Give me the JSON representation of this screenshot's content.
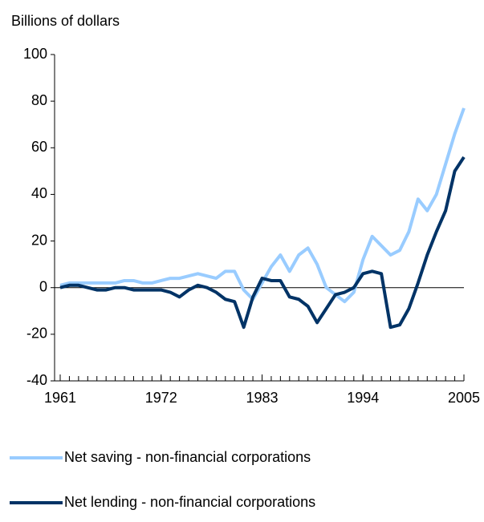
{
  "chart_data": {
    "type": "line",
    "y_axis_label": "Billions of dollars",
    "x": [
      1961,
      1962,
      1963,
      1964,
      1965,
      1966,
      1967,
      1968,
      1969,
      1970,
      1971,
      1972,
      1973,
      1974,
      1975,
      1976,
      1977,
      1978,
      1979,
      1980,
      1981,
      1982,
      1983,
      1984,
      1985,
      1986,
      1987,
      1988,
      1989,
      1990,
      1991,
      1992,
      1993,
      1994,
      1995,
      1996,
      1997,
      1998,
      1999,
      2000,
      2001,
      2002,
      2003,
      2004,
      2005
    ],
    "series": [
      {
        "name": "Net saving - non-financial corporations",
        "color": "#99ccff",
        "values": [
          1,
          2,
          2,
          2,
          2,
          2,
          2,
          3,
          3,
          2,
          2,
          3,
          4,
          4,
          5,
          6,
          5,
          4,
          7,
          7,
          -1,
          -5,
          2,
          9,
          14,
          7,
          14,
          17,
          10,
          0,
          -3,
          -6,
          -2,
          12,
          22,
          18,
          14,
          16,
          24,
          38,
          33,
          40,
          53,
          66,
          77
        ]
      },
      {
        "name": "Net lending - non-financial corporations",
        "color": "#003366",
        "values": [
          0,
          1,
          1,
          0,
          -1,
          -1,
          0,
          0,
          -1,
          -1,
          -1,
          -1,
          -2,
          -4,
          -1,
          1,
          0,
          -2,
          -5,
          -6,
          -17,
          -4,
          4,
          3,
          3,
          -4,
          -5,
          -8,
          -15,
          -9,
          -3,
          -2,
          0,
          6,
          7,
          6,
          -17,
          -16,
          -9,
          2,
          14,
          24,
          33,
          50,
          56
        ]
      }
    ],
    "xlim": [
      1961,
      2005
    ],
    "xticks": [
      1961,
      1972,
      1983,
      1994,
      2005
    ],
    "ylim": [
      -40,
      100
    ],
    "yticks": [
      -40,
      -20,
      0,
      20,
      40,
      60,
      80,
      100
    ],
    "zero_line": true
  }
}
